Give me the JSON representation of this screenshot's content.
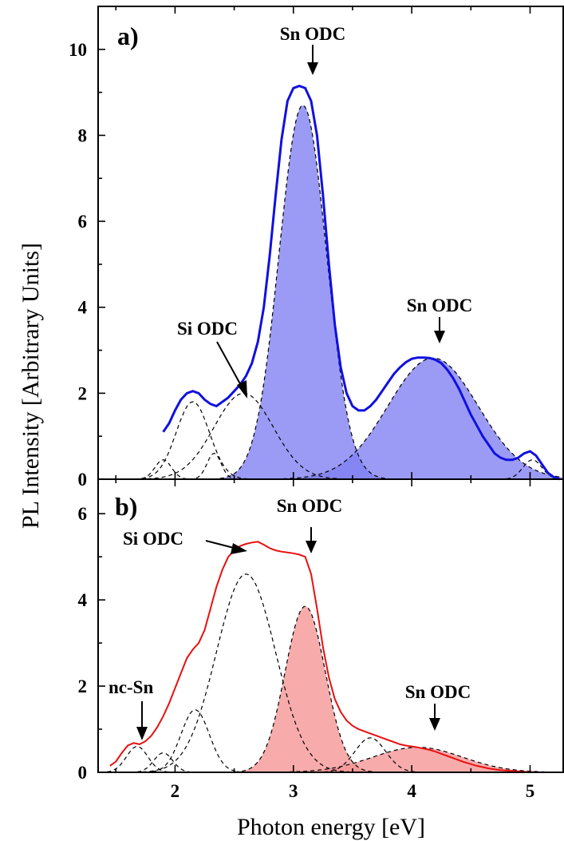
{
  "chart_data": [
    {
      "type": "line",
      "panel_label": "a)",
      "xlim": [
        1.35,
        5.28
      ],
      "ylim": [
        0,
        11
      ],
      "x_ticks": [
        2,
        3,
        4,
        5
      ],
      "y_ticks": [
        0,
        2,
        4,
        6,
        8,
        10
      ],
      "line_color": "#1010e0",
      "fill_color": "#7f7ff2",
      "measured_spectrum": {
        "x": [
          1.9,
          1.95,
          2.0,
          2.05,
          2.1,
          2.15,
          2.2,
          2.25,
          2.3,
          2.35,
          2.4,
          2.45,
          2.5,
          2.55,
          2.6,
          2.65,
          2.7,
          2.75,
          2.8,
          2.85,
          2.9,
          2.95,
          3.0,
          3.05,
          3.1,
          3.15,
          3.2,
          3.25,
          3.3,
          3.35,
          3.4,
          3.45,
          3.5,
          3.55,
          3.6,
          3.65,
          3.7,
          3.75,
          3.8,
          3.85,
          3.9,
          3.95,
          4.0,
          4.05,
          4.1,
          4.15,
          4.2,
          4.25,
          4.3,
          4.35,
          4.4,
          4.45,
          4.5,
          4.55,
          4.6,
          4.65,
          4.7,
          4.75,
          4.8,
          4.85,
          4.9,
          4.95,
          5.0,
          5.05,
          5.1,
          5.15,
          5.2,
          5.25
        ],
        "y": [
          1.1,
          1.3,
          1.6,
          1.85,
          2.0,
          2.05,
          2.0,
          1.85,
          1.75,
          1.7,
          1.8,
          1.9,
          2.05,
          2.2,
          2.4,
          2.7,
          3.2,
          4.0,
          5.2,
          6.6,
          7.9,
          8.8,
          9.1,
          9.15,
          9.1,
          8.8,
          8.0,
          6.6,
          5.0,
          3.6,
          2.6,
          2.0,
          1.7,
          1.6,
          1.6,
          1.7,
          1.85,
          2.05,
          2.25,
          2.45,
          2.6,
          2.72,
          2.8,
          2.83,
          2.83,
          2.82,
          2.78,
          2.7,
          2.55,
          2.35,
          2.1,
          1.8,
          1.5,
          1.25,
          1.0,
          0.8,
          0.6,
          0.5,
          0.45,
          0.45,
          0.5,
          0.6,
          0.65,
          0.55,
          0.35,
          0.15,
          0.05,
          0.0
        ]
      },
      "fitted_components": [
        {
          "shape": "gaussian",
          "center": 1.9,
          "amplitude": 0.45,
          "sigma": 0.07,
          "filled": false
        },
        {
          "shape": "gaussian",
          "center": 2.15,
          "amplitude": 1.8,
          "sigma": 0.14,
          "filled": false
        },
        {
          "shape": "gaussian",
          "center": 2.33,
          "amplitude": 0.6,
          "sigma": 0.06,
          "filled": false
        },
        {
          "shape": "gaussian",
          "center": 2.58,
          "amplitude": 2.0,
          "sigma": 0.25,
          "filled": false
        },
        {
          "shape": "gaussian",
          "center": 3.08,
          "amplitude": 8.7,
          "sigma": 0.2,
          "filled": true
        },
        {
          "shape": "gaussian",
          "center": 4.18,
          "amplitude": 2.82,
          "sigma": 0.38,
          "filled": true
        },
        {
          "shape": "gaussian",
          "center": 5.02,
          "amplitude": 0.45,
          "sigma": 0.08,
          "filled": false
        }
      ],
      "annotations": [
        {
          "label": "Sn ODC",
          "target_x": 3.1,
          "target_y": 9.65
        },
        {
          "label": "Sn ODC",
          "target_x": 4.18,
          "target_y": 3.3
        },
        {
          "label": "Si ODC",
          "target_x": 2.6,
          "target_y": 2.0
        }
      ]
    },
    {
      "type": "line",
      "panel_label": "b)",
      "xlim": [
        1.35,
        5.28
      ],
      "ylim": [
        0,
        6.8
      ],
      "x_ticks": [
        2,
        3,
        4,
        5
      ],
      "y_ticks": [
        0,
        2,
        4,
        6
      ],
      "line_color": "#e81010",
      "fill_color": "#f59393",
      "measured_spectrum": {
        "x": [
          1.45,
          1.5,
          1.55,
          1.6,
          1.65,
          1.7,
          1.75,
          1.8,
          1.85,
          1.9,
          1.95,
          2.0,
          2.05,
          2.1,
          2.15,
          2.2,
          2.25,
          2.3,
          2.35,
          2.4,
          2.45,
          2.5,
          2.55,
          2.6,
          2.65,
          2.7,
          2.75,
          2.8,
          2.85,
          2.9,
          2.95,
          3.0,
          3.05,
          3.1,
          3.15,
          3.2,
          3.25,
          3.3,
          3.35,
          3.4,
          3.45,
          3.5,
          3.55,
          3.6,
          3.65,
          3.7,
          3.75,
          3.8,
          3.85,
          3.9,
          3.95,
          4.0,
          4.05,
          4.1,
          4.15,
          4.2,
          4.25,
          4.3,
          4.35,
          4.4,
          4.45,
          4.5,
          4.55,
          4.6,
          4.65,
          4.7,
          4.75,
          4.8,
          4.85,
          4.9,
          4.95,
          5.0,
          5.05,
          5.1
        ],
        "y": [
          0.15,
          0.25,
          0.45,
          0.62,
          0.68,
          0.65,
          0.72,
          0.85,
          1.05,
          1.3,
          1.6,
          1.95,
          2.3,
          2.65,
          2.85,
          3.0,
          3.3,
          3.8,
          4.3,
          4.7,
          5.0,
          5.15,
          5.25,
          5.3,
          5.33,
          5.35,
          5.28,
          5.2,
          5.15,
          5.12,
          5.1,
          5.08,
          5.05,
          5.0,
          4.6,
          3.8,
          2.9,
          2.2,
          1.7,
          1.4,
          1.2,
          1.08,
          1.0,
          0.95,
          0.9,
          0.85,
          0.8,
          0.75,
          0.7,
          0.65,
          0.62,
          0.6,
          0.58,
          0.55,
          0.52,
          0.48,
          0.43,
          0.38,
          0.33,
          0.28,
          0.23,
          0.19,
          0.15,
          0.12,
          0.09,
          0.07,
          0.05,
          0.04,
          0.03,
          0.02,
          0.01,
          0.01,
          0.0,
          0.0
        ]
      },
      "fitted_components": [
        {
          "shape": "gaussian",
          "center": 1.68,
          "amplitude": 0.6,
          "sigma": 0.09,
          "filled": false
        },
        {
          "shape": "gaussian",
          "center": 1.9,
          "amplitude": 0.45,
          "sigma": 0.08,
          "filled": false
        },
        {
          "shape": "gaussian",
          "center": 2.17,
          "amplitude": 1.45,
          "sigma": 0.12,
          "filled": false
        },
        {
          "shape": "gaussian",
          "center": 2.6,
          "amplitude": 4.6,
          "sigma": 0.25,
          "filled": false
        },
        {
          "shape": "gaussian",
          "center": 3.1,
          "amplitude": 3.85,
          "sigma": 0.17,
          "filled": true
        },
        {
          "shape": "gaussian",
          "center": 3.65,
          "amplitude": 0.8,
          "sigma": 0.13,
          "filled": false
        },
        {
          "shape": "gaussian",
          "center": 4.05,
          "amplitude": 0.58,
          "sigma": 0.38,
          "filled": true
        }
      ],
      "annotations": [
        {
          "label": "nc-Sn",
          "target_x": 1.72,
          "target_y": 0.75
        },
        {
          "label": "Si ODC",
          "target_x": 2.58,
          "target_y": 5.35
        },
        {
          "label": "Sn ODC",
          "target_x": 3.1,
          "target_y": 5.3
        },
        {
          "label": "Sn ODC",
          "target_x": 4.18,
          "target_y": 0.82
        }
      ]
    }
  ],
  "axes": {
    "xlabel": "Photon energy [eV]",
    "ylabel": "PL Intensity [Arbitrary Units]"
  }
}
